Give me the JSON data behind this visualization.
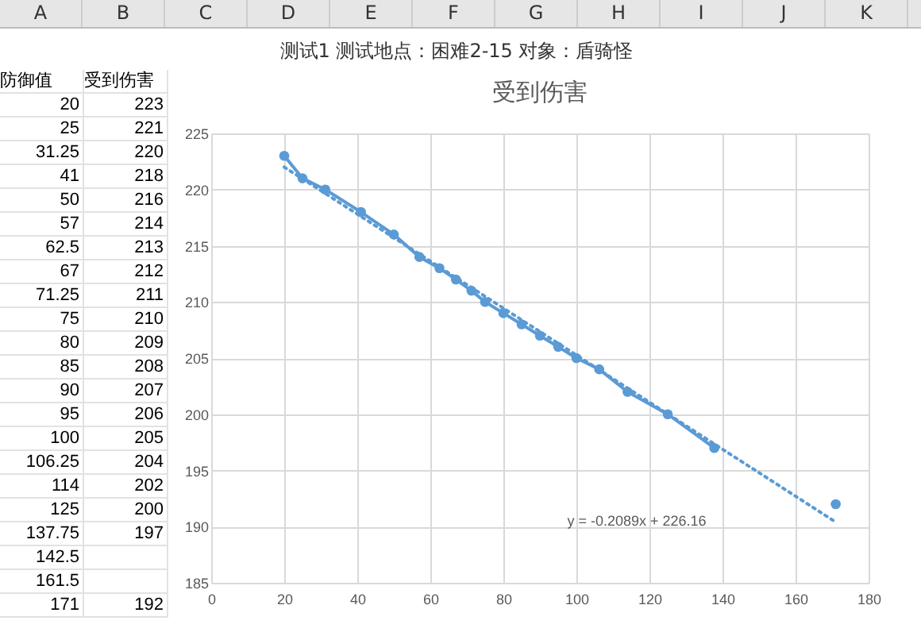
{
  "chart_data": [
    {
      "type": "other",
      "annotations": [
        "防御值",
        "受到伤害"
      ],
      "categories": [
        "20",
        "25",
        "31.25",
        "41",
        "50",
        "57",
        "62.5",
        "67",
        "71.25",
        "75",
        "80",
        "85",
        "90",
        "95",
        "100",
        "106.25",
        "114",
        "125",
        "137.75",
        "142.5",
        "161.5",
        "171"
      ],
      "value_labels": [
        "223",
        "221",
        "220",
        "218",
        "216",
        "214",
        "213",
        "212",
        "211",
        "210",
        "209",
        "208",
        "207",
        "206",
        "205",
        "204",
        "202",
        "200",
        "197",
        null,
        null,
        "192"
      ]
    },
    {
      "type": "line",
      "title": "受到伤害",
      "subtitle": "测试1  测试地点：困难2-15 对象：盾骑怪",
      "x": [
        20,
        25,
        31.25,
        41,
        50,
        57,
        62.5,
        67,
        71.25,
        75,
        80,
        85,
        90,
        95,
        100,
        106.25,
        114,
        125,
        137.75,
        142.5,
        161.5,
        171
      ],
      "series": [
        {
          "color": "#5b9bd5",
          "marker": "circle",
          "values": [
            223,
            221,
            220,
            218,
            216,
            214,
            213,
            212,
            211,
            210,
            209,
            208,
            207,
            206,
            205,
            204,
            202,
            200,
            197,
            null,
            null,
            192
          ]
        },
        {
          "type": "line",
          "color": "#5b9bd5",
          "line_style": "dotted",
          "marker": "none",
          "x": [
            20,
            171
          ],
          "values": [
            222,
            190.4
          ]
        }
      ],
      "annotations": [
        "y = -0.2089x + 226.16",
        "A",
        "B",
        "C",
        "D",
        "E",
        "F",
        "G",
        "H",
        "I",
        "J",
        "K"
      ],
      "grid": true,
      "xlim": [
        0,
        180
      ],
      "xticks": [
        0,
        20,
        40,
        60,
        80,
        100,
        120,
        140,
        160,
        180
      ],
      "ylim": [
        185,
        225
      ],
      "yticks": [
        185,
        190,
        195,
        200,
        205,
        210,
        215,
        220,
        225
      ]
    }
  ]
}
